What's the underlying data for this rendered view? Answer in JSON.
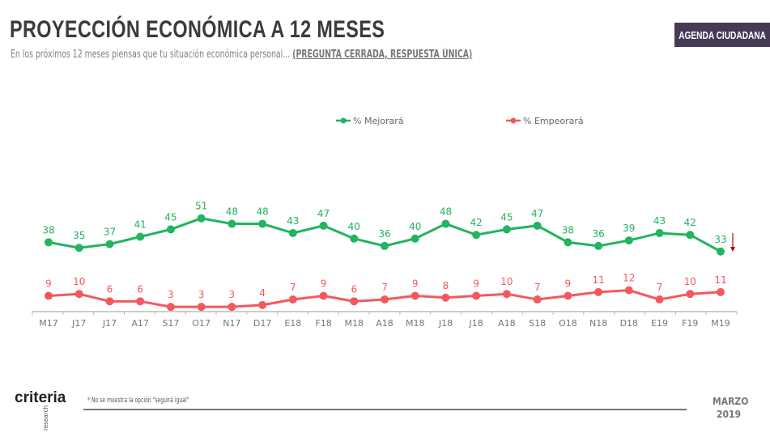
{
  "header": {
    "title": "PROYECCIÓN ECONÓMICA A 12 MESES",
    "subtitle": "En los próximos 12 meses piensas que tu situación económica personal...",
    "subtitle_note": "(PREGUNTA CERRADA, RESPUESTA ÚNICA)",
    "badge": "AGENDA CIUDADANA"
  },
  "footer": {
    "logo": "criteria",
    "logo_sub": "research",
    "note": "* No se muestra la opción \"seguirá igual\"",
    "month": "MARZO",
    "year": "2019"
  },
  "chart_data": {
    "type": "line",
    "categories": [
      "M17",
      "J17",
      "J17",
      "A17",
      "S17",
      "O17",
      "N17",
      "D17",
      "E18",
      "F18",
      "M18",
      "A18",
      "M18",
      "J18",
      "J18",
      "A18",
      "S18",
      "O18",
      "N18",
      "D18",
      "E19",
      "F19",
      "M19"
    ],
    "series": [
      {
        "name": "% Mejorará",
        "color": "#22b45e",
        "label_color": "#22b45e",
        "values": [
          38,
          35,
          37,
          41,
          45,
          51,
          48,
          48,
          43,
          47,
          40,
          36,
          40,
          48,
          42,
          45,
          47,
          38,
          36,
          39,
          43,
          42,
          33
        ]
      },
      {
        "name": "% Empeorará",
        "color": "#f4585f",
        "label_color": "#f4585f",
        "values": [
          9,
          10,
          6,
          6,
          3,
          3,
          3,
          4,
          7,
          9,
          6,
          7,
          9,
          8,
          9,
          10,
          7,
          9,
          11,
          12,
          7,
          10,
          11
        ]
      }
    ],
    "legend_position": "top",
    "grid": false,
    "annotation": {
      "icon": "down-arrow-icon",
      "color": "#c00000"
    }
  }
}
